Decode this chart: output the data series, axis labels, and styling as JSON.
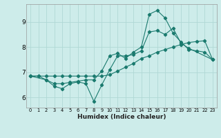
{
  "xlabel": "Humidex (Indice chaleur)",
  "ylabel": "",
  "xlim": [
    -0.5,
    23.5
  ],
  "ylim": [
    5.6,
    9.7
  ],
  "xticks": [
    0,
    1,
    2,
    3,
    4,
    5,
    6,
    7,
    8,
    9,
    10,
    11,
    12,
    13,
    14,
    15,
    16,
    17,
    18,
    19,
    20,
    21,
    22,
    23
  ],
  "yticks": [
    6,
    7,
    8,
    9
  ],
  "background_color": "#cdecea",
  "grid_color": "#b0d8d5",
  "line_color": "#1a7a6e",
  "line1_x": [
    0,
    1,
    2,
    3,
    4,
    5,
    6,
    7,
    8,
    9,
    10,
    11,
    12,
    13,
    14,
    15,
    16,
    17,
    18,
    19,
    20,
    21,
    22,
    23
  ],
  "line1_y": [
    6.85,
    6.85,
    6.85,
    6.85,
    6.85,
    6.85,
    6.85,
    6.85,
    6.85,
    6.85,
    6.9,
    7.05,
    7.2,
    7.35,
    7.55,
    7.65,
    7.8,
    7.9,
    8.0,
    8.1,
    8.18,
    8.22,
    8.25,
    7.5
  ],
  "line2_x": [
    0,
    1,
    2,
    3,
    4,
    5,
    6,
    7,
    8,
    9,
    10,
    11,
    12,
    13,
    14,
    15,
    16,
    17,
    18,
    19,
    20,
    21,
    22,
    23
  ],
  "line2_y": [
    6.85,
    6.85,
    6.7,
    6.55,
    6.55,
    6.6,
    6.65,
    6.7,
    6.7,
    7.05,
    7.65,
    7.75,
    7.55,
    7.8,
    8.0,
    9.3,
    9.45,
    9.15,
    8.55,
    8.2,
    7.9,
    7.85,
    7.8,
    7.5
  ],
  "line3_x": [
    0,
    2,
    3,
    4,
    5,
    6,
    7,
    8,
    9,
    10,
    11,
    12,
    13,
    14,
    15,
    16,
    17,
    18,
    19,
    20,
    23
  ],
  "line3_y": [
    6.85,
    6.7,
    6.45,
    6.35,
    6.55,
    6.62,
    6.55,
    5.85,
    6.5,
    7.1,
    7.65,
    7.65,
    7.7,
    7.85,
    8.6,
    8.65,
    8.5,
    8.75,
    8.15,
    7.95,
    7.5
  ]
}
